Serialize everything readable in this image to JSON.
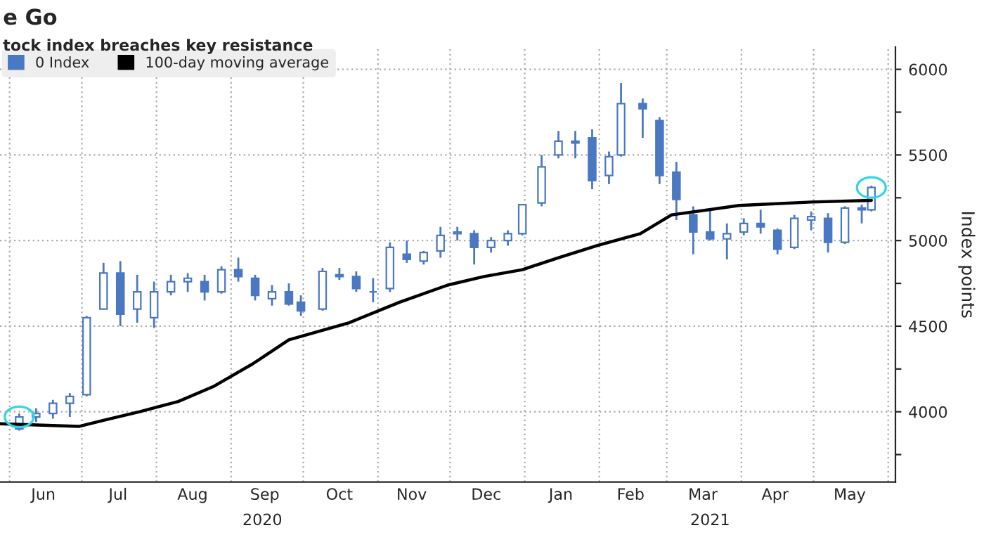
{
  "chart_data": {
    "type": "candlestick",
    "title": "e Go",
    "subtitle": "tock index breaches key resistance",
    "ylabel": "Index points",
    "xlim": [
      "2020-05-28",
      "2021-06-04"
    ],
    "xticks": [
      {
        "value": "2020-06-01",
        "label": null
      },
      {
        "value": "2020-06-15",
        "label": "Jun"
      },
      {
        "value": "2020-07-01",
        "label": null
      },
      {
        "value": "2020-07-16",
        "label": "Jul"
      },
      {
        "value": "2020-08-01",
        "label": null
      },
      {
        "value": "2020-08-16",
        "label": "Aug"
      },
      {
        "value": "2020-09-01",
        "label": null
      },
      {
        "value": "2020-09-15",
        "label": "Sep"
      },
      {
        "value": "2020-10-01",
        "label": null
      },
      {
        "value": "2020-10-16",
        "label": "Oct"
      },
      {
        "value": "2020-11-01",
        "label": null
      },
      {
        "value": "2020-11-15",
        "label": "Nov"
      },
      {
        "value": "2020-12-01",
        "label": null
      },
      {
        "value": "2020-12-16",
        "label": "Dec"
      },
      {
        "value": "2021-01-01",
        "label": null
      },
      {
        "value": "2021-01-16",
        "label": "Jan"
      },
      {
        "value": "2021-02-01",
        "label": null
      },
      {
        "value": "2021-02-14",
        "label": "Feb"
      },
      {
        "value": "2021-03-01",
        "label": null
      },
      {
        "value": "2021-03-16",
        "label": "Mar"
      },
      {
        "value": "2021-04-01",
        "label": null
      },
      {
        "value": "2021-04-15",
        "label": "Apr"
      },
      {
        "value": "2021-05-01",
        "label": null
      },
      {
        "value": "2021-05-16",
        "label": "May"
      },
      {
        "value": "2021-06-01",
        "label": null
      }
    ],
    "ylim": [
      3590,
      6130
    ],
    "yticks": [
      {
        "value": 3750,
        "label": null
      },
      4000,
      {
        "value": 4250,
        "label": null
      },
      4500,
      {
        "value": 4750,
        "label": null
      },
      5000,
      {
        "value": 5250,
        "label": null
      },
      5500,
      {
        "value": 5750,
        "label": null
      },
      6000
    ],
    "grid": true,
    "legend": "top left",
    "annotations": [
      "2020",
      "2021"
    ],
    "series": [
      {
        "name": "0 Index",
        "color": "#4a78c2",
        "x": [
          "2020-06-05",
          "2020-06-12",
          "2020-06-19",
          "2020-06-26",
          "2020-07-03",
          "2020-07-10",
          "2020-07-17",
          "2020-07-24",
          "2020-07-31",
          "2020-08-07",
          "2020-08-14",
          "2020-08-21",
          "2020-08-28",
          "2020-09-04",
          "2020-09-11",
          "2020-09-18",
          "2020-09-25",
          "2020-09-30",
          "2020-10-09",
          "2020-10-16",
          "2020-10-23",
          "2020-10-30",
          "2020-11-06",
          "2020-11-13",
          "2020-11-20",
          "2020-11-27",
          "2020-12-04",
          "2020-12-11",
          "2020-12-18",
          "2020-12-25",
          "2020-12-31",
          "2021-01-08",
          "2021-01-15",
          "2021-01-22",
          "2021-01-29",
          "2021-02-05",
          "2021-02-10",
          "2021-02-19",
          "2021-02-26",
          "2021-03-05",
          "2021-03-12",
          "2021-03-19",
          "2021-03-26",
          "2021-04-02",
          "2021-04-09",
          "2021-04-16",
          "2021-04-23",
          "2021-04-30",
          "2021-05-07",
          "2021-05-14",
          "2021-05-21",
          "2021-05-25"
        ],
        "ohlc": [
          [
            3900,
            3990,
            3890,
            3970
          ],
          [
            3970,
            4020,
            3940,
            3990
          ],
          [
            3990,
            4070,
            3960,
            4050
          ],
          [
            4050,
            4110,
            3970,
            4090
          ],
          [
            4100,
            4560,
            4090,
            4550
          ],
          [
            4600,
            4870,
            4600,
            4810
          ],
          [
            4810,
            4880,
            4500,
            4570
          ],
          [
            4600,
            4800,
            4520,
            4700
          ],
          [
            4550,
            4760,
            4490,
            4700
          ],
          [
            4700,
            4800,
            4680,
            4760
          ],
          [
            4760,
            4810,
            4700,
            4780
          ],
          [
            4760,
            4800,
            4650,
            4700
          ],
          [
            4700,
            4850,
            4690,
            4830
          ],
          [
            4830,
            4900,
            4760,
            4790
          ],
          [
            4780,
            4800,
            4650,
            4680
          ],
          [
            4660,
            4740,
            4620,
            4700
          ],
          [
            4700,
            4750,
            4620,
            4630
          ],
          [
            4640,
            4680,
            4560,
            4590
          ],
          [
            4600,
            4840,
            4590,
            4820
          ],
          [
            4800,
            4840,
            4770,
            4790
          ],
          [
            4790,
            4820,
            4700,
            4720
          ],
          [
            4700,
            4780,
            4640,
            4700
          ],
          [
            4720,
            4990,
            4700,
            4960
          ],
          [
            4920,
            5000,
            4870,
            4890
          ],
          [
            4880,
            4940,
            4860,
            4930
          ],
          [
            4940,
            5080,
            4900,
            5030
          ],
          [
            5040,
            5080,
            5000,
            5050
          ],
          [
            5040,
            5060,
            4860,
            4960
          ],
          [
            4960,
            5020,
            4930,
            5000
          ],
          [
            5000,
            5060,
            4970,
            5040
          ],
          [
            5040,
            5210,
            5030,
            5210
          ],
          [
            5220,
            5500,
            5200,
            5430
          ],
          [
            5500,
            5640,
            5480,
            5580
          ],
          [
            5580,
            5640,
            5480,
            5570
          ],
          [
            5600,
            5650,
            5300,
            5350
          ],
          [
            5380,
            5520,
            5330,
            5490
          ],
          [
            5500,
            5920,
            5490,
            5800
          ],
          [
            5800,
            5830,
            5600,
            5770
          ],
          [
            5700,
            5720,
            5330,
            5380
          ],
          [
            5400,
            5460,
            5120,
            5240
          ],
          [
            5150,
            5200,
            4920,
            5050
          ],
          [
            5050,
            5180,
            5000,
            5010
          ],
          [
            5010,
            5100,
            4890,
            5040
          ],
          [
            5050,
            5130,
            5030,
            5100
          ],
          [
            5100,
            5180,
            5040,
            5080
          ],
          [
            5060,
            5070,
            4920,
            4950
          ],
          [
            4960,
            5150,
            4950,
            5130
          ],
          [
            5120,
            5170,
            5060,
            5140
          ],
          [
            5130,
            5160,
            4930,
            4990
          ],
          [
            4990,
            5200,
            4980,
            5190
          ],
          [
            5190,
            5210,
            5100,
            5180
          ],
          [
            5180,
            5320,
            5170,
            5310
          ]
        ]
      },
      {
        "name": "100-day moving average",
        "type": "line",
        "color": "#000000",
        "x": [
          "2020-05-28",
          "2020-06-30",
          "2020-07-10",
          "2020-07-25",
          "2020-08-10",
          "2020-08-25",
          "2020-09-10",
          "2020-09-25",
          "2020-10-20",
          "2020-11-10",
          "2020-11-30",
          "2020-12-15",
          "2020-12-31",
          "2021-01-15",
          "2021-01-31",
          "2021-02-18",
          "2021-03-03",
          "2021-03-31",
          "2021-04-30",
          "2021-05-25"
        ],
        "values": [
          3930,
          3915,
          3950,
          4000,
          4060,
          4150,
          4280,
          4420,
          4520,
          4640,
          4740,
          4790,
          4830,
          4900,
          4970,
          5040,
          5150,
          5205,
          5225,
          5235
        ]
      }
    ]
  }
}
